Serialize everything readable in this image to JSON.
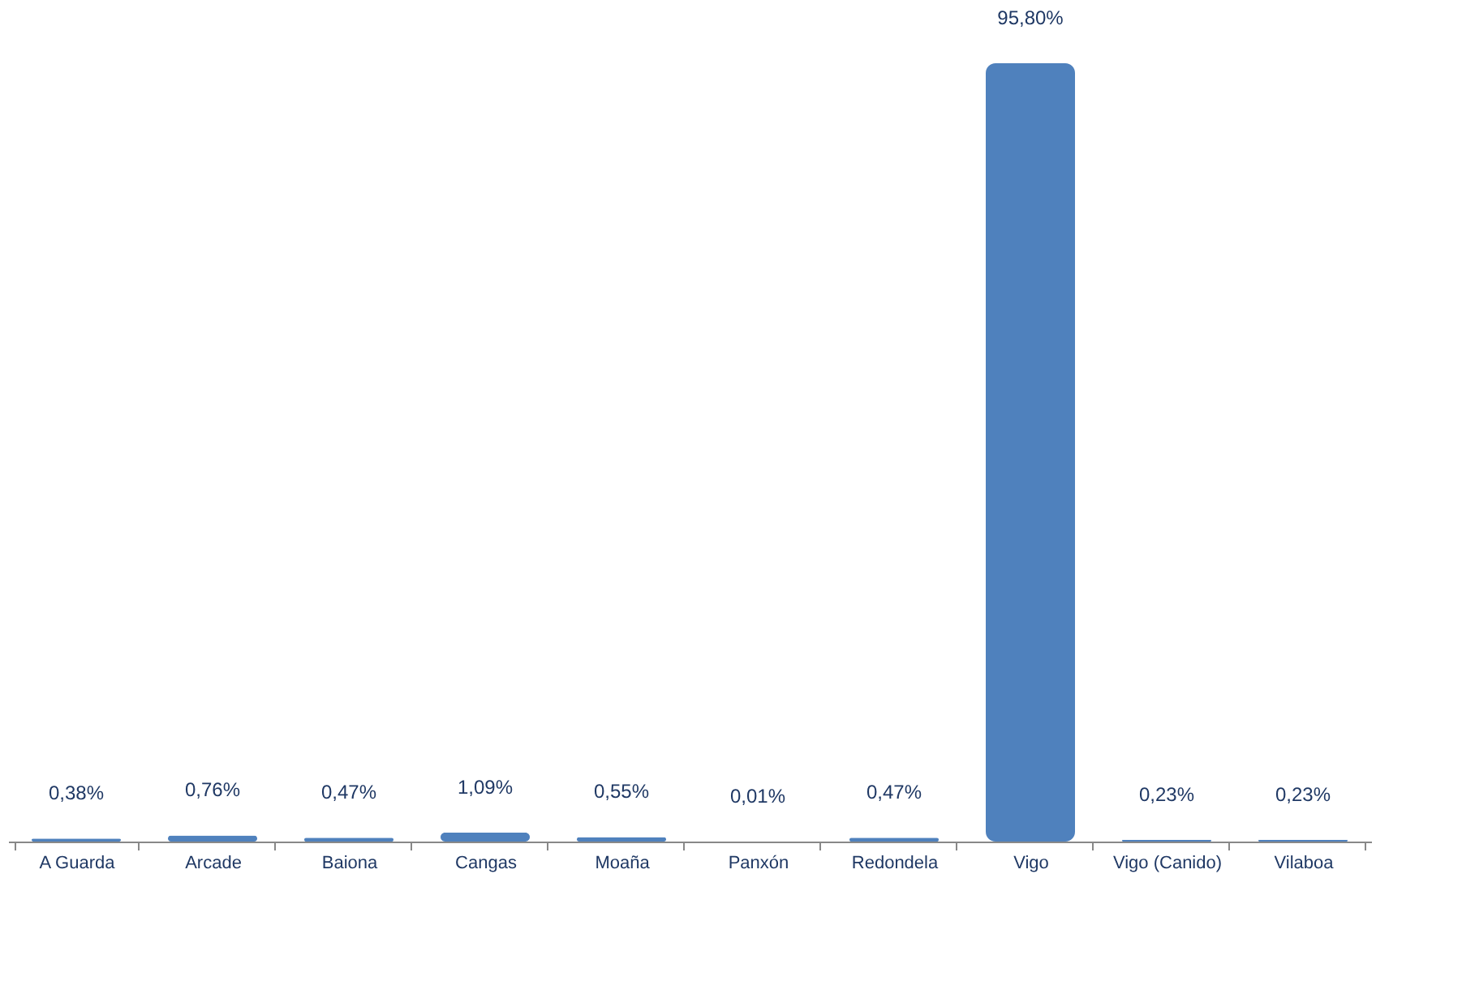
{
  "chart_data": {
    "type": "bar",
    "categories": [
      "A Guarda",
      "Arcade",
      "Baiona",
      "Cangas",
      "Moaña",
      "Panxón",
      "Redondela",
      "Vigo",
      "Vigo (Canido)",
      "Vilaboa"
    ],
    "values": [
      0.38,
      0.76,
      0.47,
      1.09,
      0.55,
      0.01,
      0.47,
      95.8,
      0.23,
      0.23
    ],
    "value_labels": [
      "0,38%",
      "0,76%",
      "0,47%",
      "1,09%",
      "0,55%",
      "0,01%",
      "0,47%",
      "95,80%",
      "0,23%",
      "0,23%"
    ],
    "color": "#4f81bd",
    "grid": false
  }
}
